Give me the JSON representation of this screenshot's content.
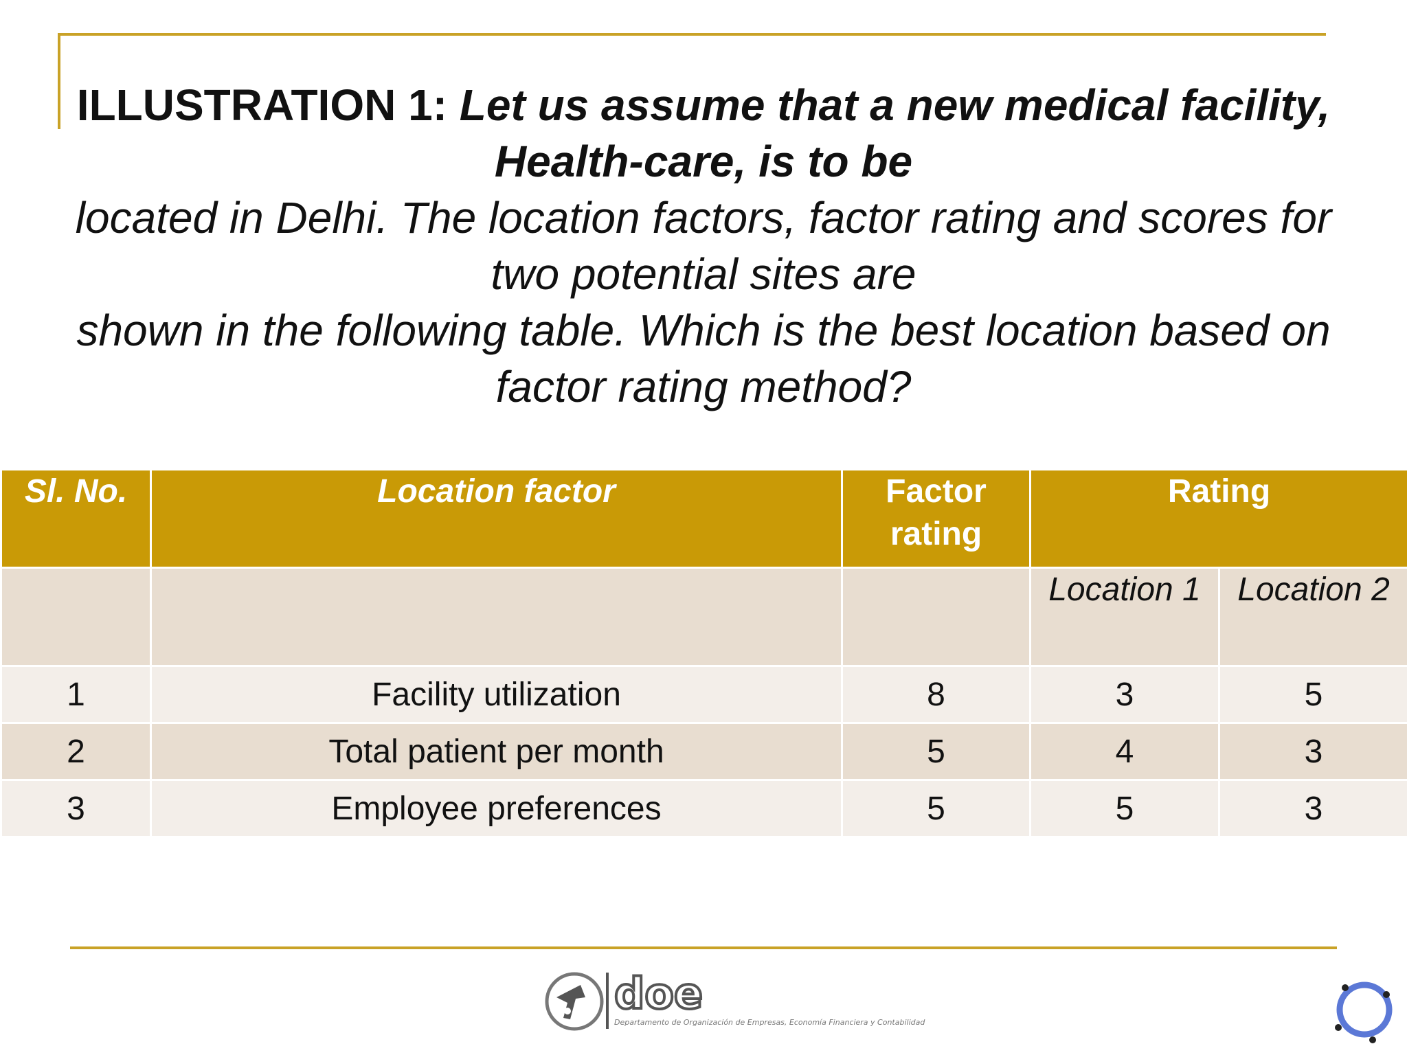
{
  "title": {
    "lead": "ILLUSTRATION 1: ",
    "bold_italic": "Let us assume that a new medical facility, Health-care, is to be",
    "rest_line1": "located in Delhi. The location factors, factor rating and scores for two potential sites are",
    "rest_line2": "shown in the following table. Which is the best location based on factor rating method?"
  },
  "table": {
    "headers": {
      "sl_no": "Sl. No.",
      "location_factor": "Location factor",
      "factor_rating": "Factor rating",
      "rating": "Rating"
    },
    "subheaders": {
      "location1": "Location 1",
      "location2": "Location 2"
    },
    "rows": [
      {
        "sl": "1",
        "factor": "Facility utilization",
        "factor_rating": "8",
        "loc1": "3",
        "loc2": "5"
      },
      {
        "sl": "2",
        "factor": "Total patient per month",
        "factor_rating": "5",
        "loc1": "4",
        "loc2": "3"
      },
      {
        "sl": "3",
        "factor": "Employee preferences",
        "factor_rating": "5",
        "loc1": "5",
        "loc2": "3"
      }
    ]
  },
  "footer": {
    "logo_word": "doe",
    "logo_caption": "Departamento de Organización de Empresas, Economía Financiera y Contabilidad"
  },
  "colors": {
    "accent": "#c9a227",
    "header_fill": "#c99a06",
    "row_dark": "#e8ddd0",
    "row_light": "#f3eee9"
  }
}
